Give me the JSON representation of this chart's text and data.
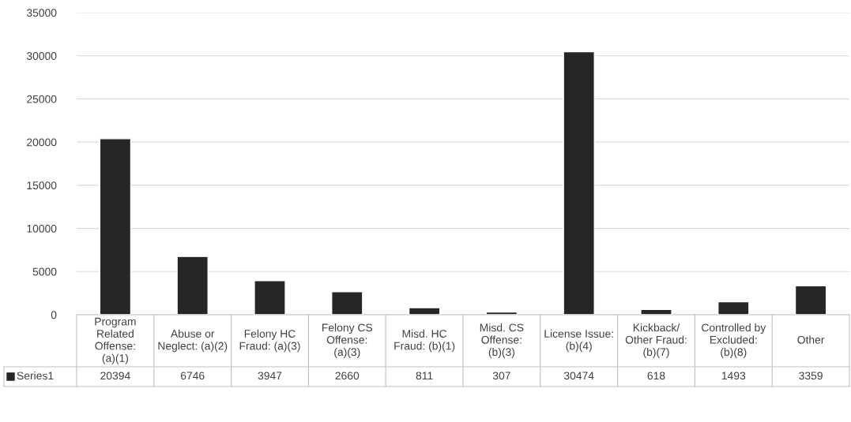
{
  "chart_data": {
    "type": "bar",
    "categories": [
      "Program Related Offense: (a)(1)",
      "Abuse or Neglect: (a)(2)",
      "Felony HC Fraud: (a)(3)",
      "Felony CS Offense: (a)(3)",
      "Misd. HC Fraud: (b)(1)",
      "Misd. CS Offense: (b)(3)",
      "License Issue: (b)(4)",
      "Kickback/Other Fraud: (b)(7)",
      "Controlled by Excluded: (b)(8)",
      "Other"
    ],
    "series": [
      {
        "name": "Series1",
        "color": "#262626",
        "values": [
          20394,
          6746,
          3947,
          2660,
          811,
          307,
          30474,
          618,
          1493,
          3359
        ]
      }
    ],
    "ylim": [
      0,
      35000
    ],
    "yticks": [
      0,
      5000,
      10000,
      15000,
      20000,
      25000,
      30000,
      35000
    ],
    "grid": "y",
    "data_labels": true
  }
}
